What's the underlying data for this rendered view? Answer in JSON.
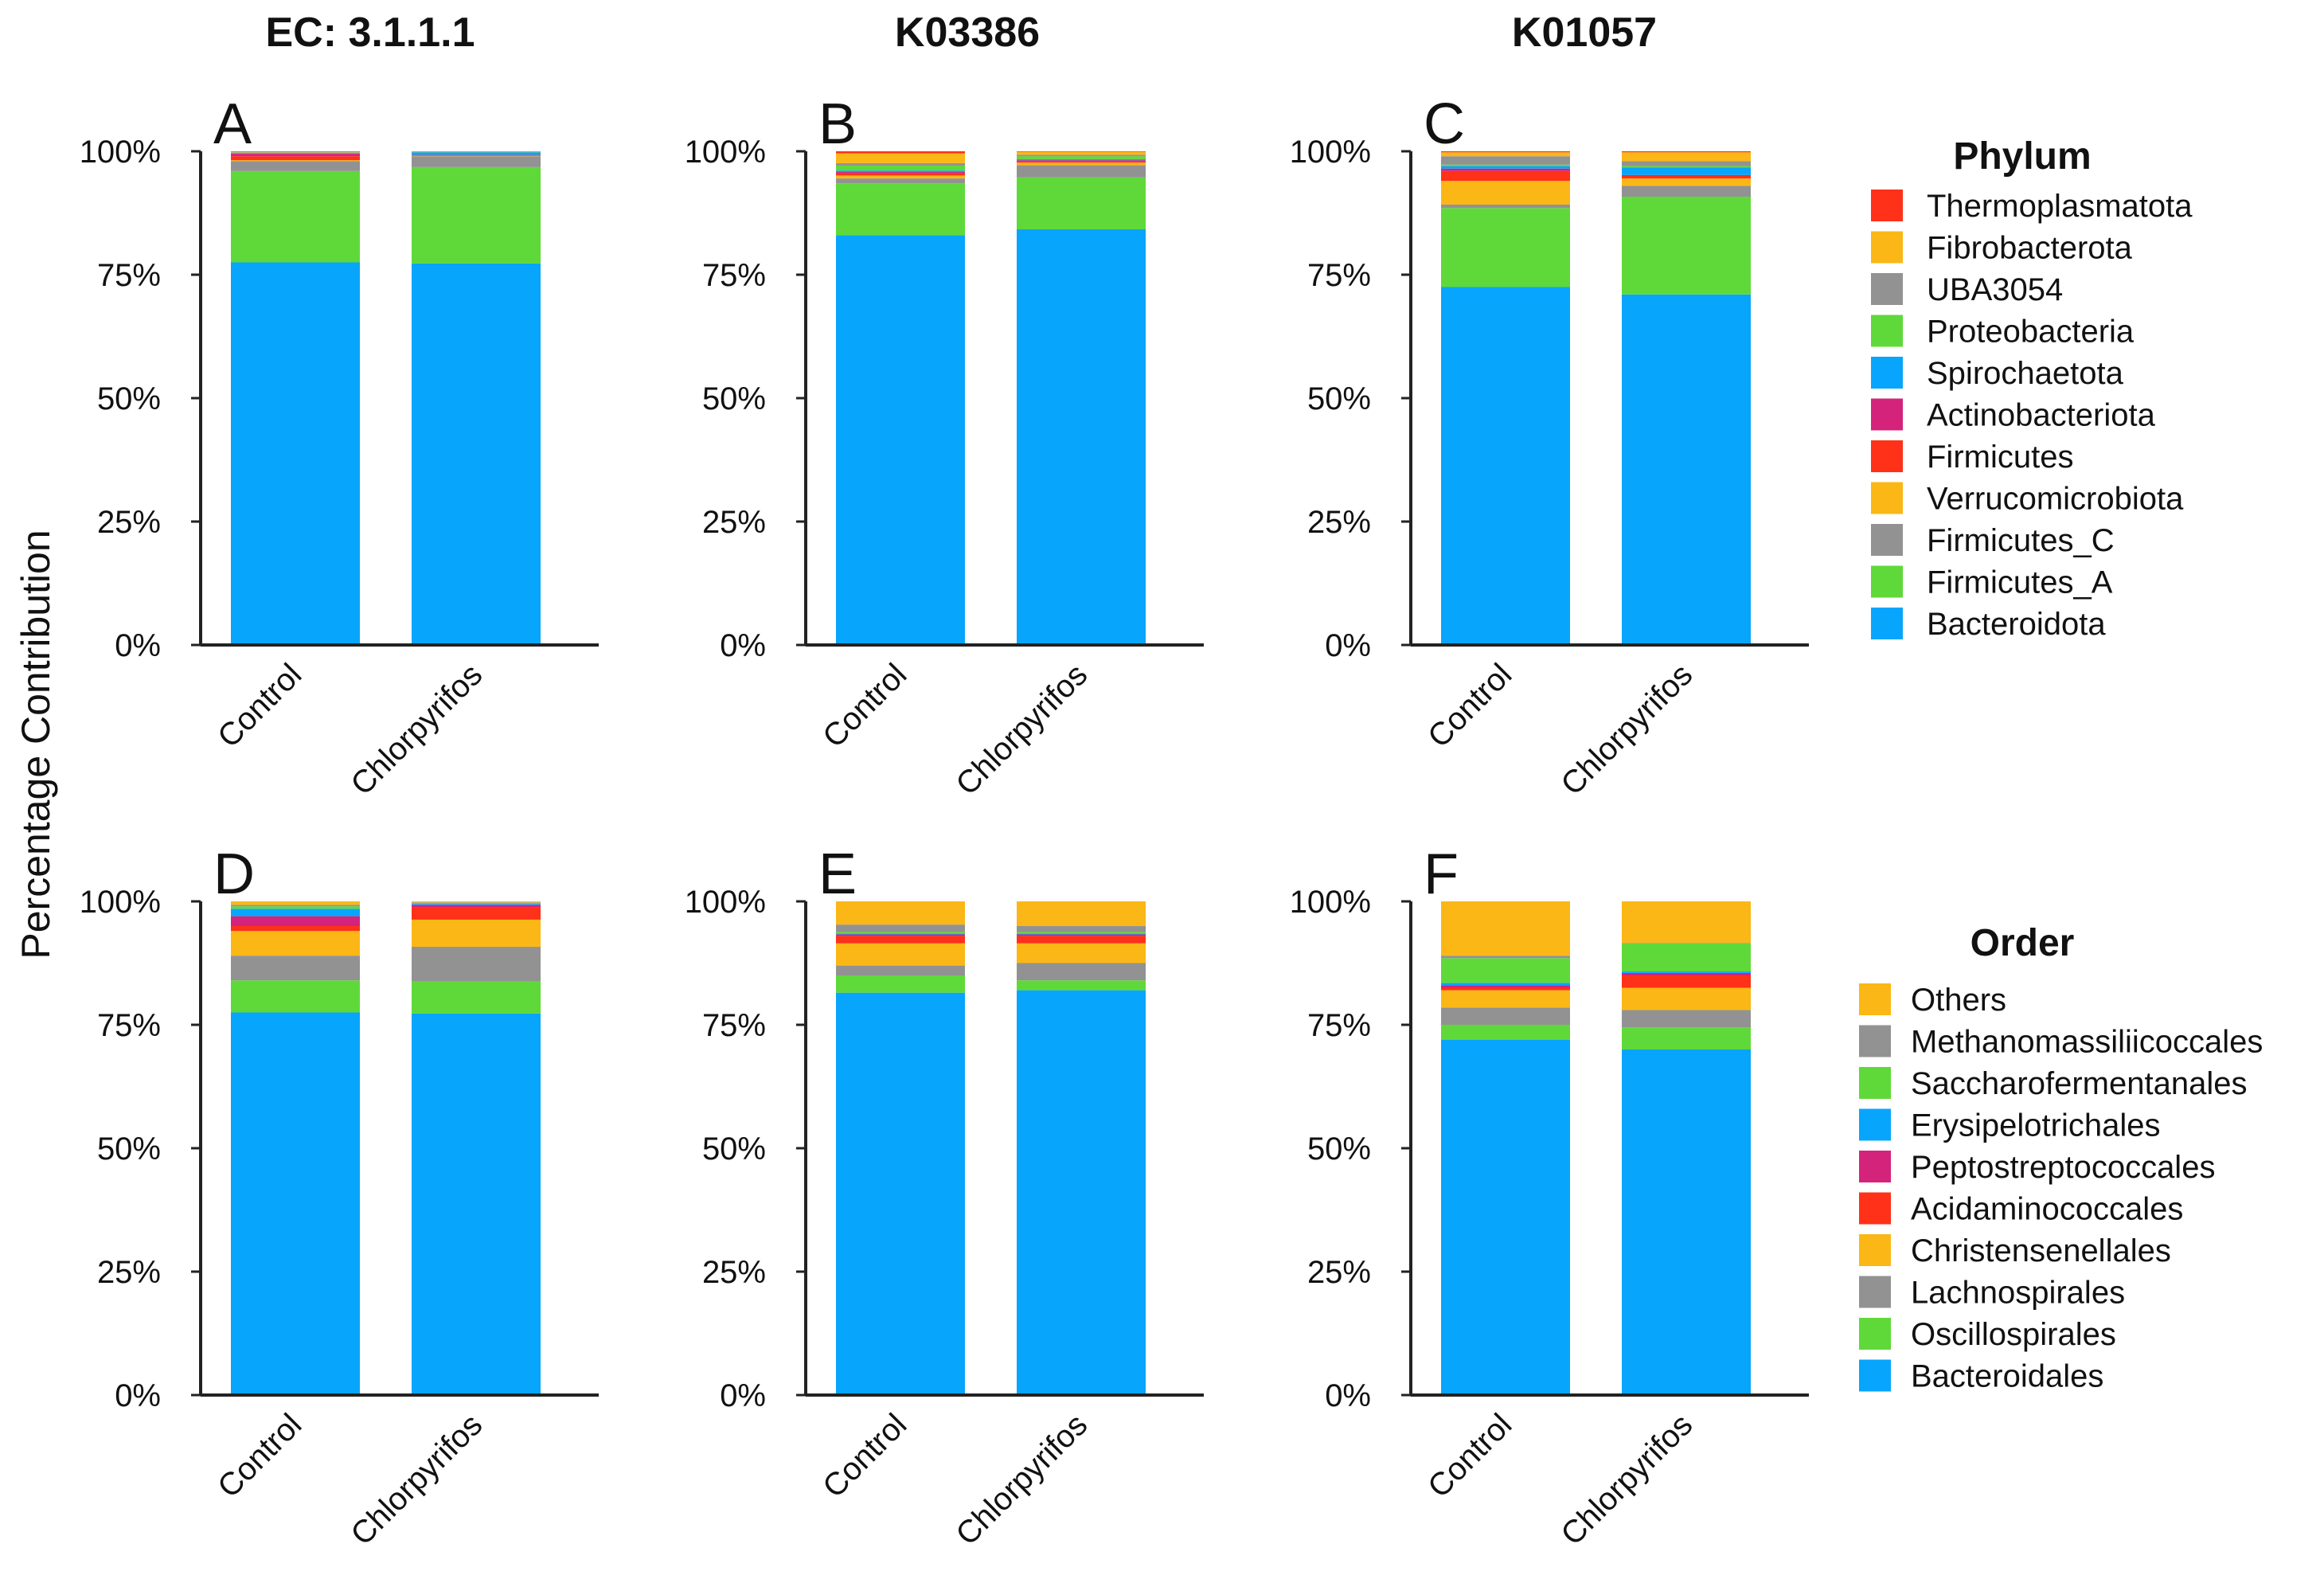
{
  "ylabel": "Percentage Contribution",
  "column_titles": [
    "EC: 3.1.1.1",
    "K03386",
    "K01057"
  ],
  "legends": [
    {
      "title": "Phylum",
      "entries": [
        {
          "label": "Thermoplasmatota",
          "color": "#ff3118"
        },
        {
          "label": "Fibrobacterota",
          "color": "#fbb716"
        },
        {
          "label": "UBA3054",
          "color": "#929292"
        },
        {
          "label": "Proteobacteria",
          "color": "#5fd93a"
        },
        {
          "label": "Spirochaetota",
          "color": "#08a5fd"
        },
        {
          "label": "Actinobacteriota",
          "color": "#d4237b"
        },
        {
          "label": "Firmicutes",
          "color": "#ff3118"
        },
        {
          "label": "Verrucomicrobiota",
          "color": "#fbb716"
        },
        {
          "label": "Firmicutes_C",
          "color": "#929292"
        },
        {
          "label": "Firmicutes_A",
          "color": "#5fd93a"
        },
        {
          "label": "Bacteroidota",
          "color": "#08a5fd"
        }
      ]
    },
    {
      "title": "Order",
      "entries": [
        {
          "label": "Others",
          "color": "#fbb716"
        },
        {
          "label": "Methanomassiliicoccales",
          "color": "#929292"
        },
        {
          "label": "Saccharofermentanales",
          "color": "#5fd93a"
        },
        {
          "label": "Erysipelotrichales",
          "color": "#08a5fd"
        },
        {
          "label": "Peptostreptococcales",
          "color": "#d4237b"
        },
        {
          "label": "Acidaminococcales",
          "color": "#ff3118"
        },
        {
          "label": "Christensenellales",
          "color": "#fbb716"
        },
        {
          "label": "Lachnospirales",
          "color": "#929292"
        },
        {
          "label": "Oscillospirales",
          "color": "#5fd93a"
        },
        {
          "label": "Bacteroidales",
          "color": "#08a5fd"
        }
      ]
    }
  ],
  "chart_data": [
    {
      "panel": "A",
      "type": "bar",
      "stacked": true,
      "legend": "Phylum",
      "categories": [
        "Control",
        "Chlorpyrifos"
      ],
      "ylim": [
        0,
        100
      ],
      "yticks": [
        "0%",
        "25%",
        "50%",
        "75%",
        "100%"
      ],
      "series": [
        {
          "name": "Bacteroidota",
          "values": [
            77.5,
            77.3
          ]
        },
        {
          "name": "Firmicutes_A",
          "values": [
            18.5,
            19.5
          ]
        },
        {
          "name": "Firmicutes_C",
          "values": [
            2.0,
            2.2
          ]
        },
        {
          "name": "Verrucomicrobiota",
          "values": [
            0.2,
            0.1
          ]
        },
        {
          "name": "Firmicutes",
          "values": [
            0.8,
            0.1
          ]
        },
        {
          "name": "Actinobacteriota",
          "values": [
            0.5,
            0.1
          ]
        },
        {
          "name": "Spirochaetota",
          "values": [
            0.1,
            0.5
          ]
        },
        {
          "name": "Proteobacteria",
          "values": [
            0.1,
            0.1
          ]
        },
        {
          "name": "UBA3054",
          "values": [
            0.1,
            0.1
          ]
        },
        {
          "name": "Fibrobacterota",
          "values": [
            0.1,
            0.0
          ]
        },
        {
          "name": "Thermoplasmatota",
          "values": [
            0.1,
            0.0
          ]
        }
      ]
    },
    {
      "panel": "B",
      "type": "bar",
      "stacked": true,
      "legend": "Phylum",
      "categories": [
        "Control",
        "Chlorpyrifos"
      ],
      "ylim": [
        0,
        100
      ],
      "yticks": [
        "0%",
        "25%",
        "50%",
        "75%",
        "100%"
      ],
      "series": [
        {
          "name": "Bacteroidota",
          "values": [
            83.0,
            84.2
          ]
        },
        {
          "name": "Firmicutes_A",
          "values": [
            10.5,
            10.5
          ]
        },
        {
          "name": "Firmicutes_C",
          "values": [
            1.0,
            2.5
          ]
        },
        {
          "name": "Verrucomicrobiota",
          "values": [
            0.6,
            0.5
          ]
        },
        {
          "name": "Firmicutes",
          "values": [
            0.4,
            0.3
          ]
        },
        {
          "name": "Actinobacteriota",
          "values": [
            0.3,
            0.2
          ]
        },
        {
          "name": "Spirochaetota",
          "values": [
            0.3,
            0.2
          ]
        },
        {
          "name": "Proteobacteria",
          "values": [
            1.0,
            0.6
          ]
        },
        {
          "name": "UBA3054",
          "values": [
            0.5,
            0.3
          ]
        },
        {
          "name": "Fibrobacterota",
          "values": [
            2.0,
            0.6
          ]
        },
        {
          "name": "Thermoplasmatota",
          "values": [
            0.4,
            0.1
          ]
        }
      ]
    },
    {
      "panel": "C",
      "type": "bar",
      "stacked": true,
      "legend": "Phylum",
      "categories": [
        "Control",
        "Chlorpyrifos"
      ],
      "ylim": [
        0,
        100
      ],
      "yticks": [
        "0%",
        "25%",
        "50%",
        "75%",
        "100%"
      ],
      "series": [
        {
          "name": "Bacteroidota",
          "values": [
            72.5,
            71.0
          ]
        },
        {
          "name": "Firmicutes_A",
          "values": [
            16.0,
            19.8
          ]
        },
        {
          "name": "Firmicutes_C",
          "values": [
            0.7,
            2.2
          ]
        },
        {
          "name": "Verrucomicrobiota",
          "values": [
            4.8,
            1.5
          ]
        },
        {
          "name": "Firmicutes",
          "values": [
            2.0,
            0.5
          ]
        },
        {
          "name": "Actinobacteriota",
          "values": [
            0.5,
            0.2
          ]
        },
        {
          "name": "Spirochaetota",
          "values": [
            0.5,
            1.5
          ]
        },
        {
          "name": "Proteobacteria",
          "values": [
            0.3,
            0.3
          ]
        },
        {
          "name": "UBA3054",
          "values": [
            1.7,
            1.0
          ]
        },
        {
          "name": "Fibrobacterota",
          "values": [
            0.8,
            1.8
          ]
        },
        {
          "name": "Thermoplasmatota",
          "values": [
            0.2,
            0.2
          ]
        }
      ]
    },
    {
      "panel": "D",
      "type": "bar",
      "stacked": true,
      "legend": "Order",
      "categories": [
        "Control",
        "Chlorpyrifos"
      ],
      "ylim": [
        0,
        100
      ],
      "yticks": [
        "0%",
        "25%",
        "50%",
        "75%",
        "100%"
      ],
      "series": [
        {
          "name": "Bacteroidales",
          "values": [
            77.5,
            77.3
          ]
        },
        {
          "name": "Oscillospirales",
          "values": [
            6.5,
            6.5
          ]
        },
        {
          "name": "Lachnospirales",
          "values": [
            5.0,
            7.0
          ]
        },
        {
          "name": "Christensenellales",
          "values": [
            5.0,
            5.5
          ]
        },
        {
          "name": "Acidaminococcales",
          "values": [
            1.0,
            2.5
          ]
        },
        {
          "name": "Peptostreptococcales",
          "values": [
            2.0,
            0.5
          ]
        },
        {
          "name": "Erysipelotrichales",
          "values": [
            1.5,
            0.2
          ]
        },
        {
          "name": "Saccharofermentanales",
          "values": [
            0.5,
            0.2
          ]
        },
        {
          "name": "Methanomassiliicoccales",
          "values": [
            0.3,
            0.1
          ]
        },
        {
          "name": "Others",
          "values": [
            0.7,
            0.2
          ]
        }
      ]
    },
    {
      "panel": "E",
      "type": "bar",
      "stacked": true,
      "legend": "Order",
      "categories": [
        "Control",
        "Chlorpyrifos"
      ],
      "ylim": [
        0,
        100
      ],
      "yticks": [
        "0%",
        "25%",
        "50%",
        "75%",
        "100%"
      ],
      "series": [
        {
          "name": "Bacteroidales",
          "values": [
            81.5,
            82.0
          ]
        },
        {
          "name": "Oscillospirales",
          "values": [
            3.5,
            2.0
          ]
        },
        {
          "name": "Lachnospirales",
          "values": [
            2.0,
            3.5
          ]
        },
        {
          "name": "Christensenellales",
          "values": [
            4.5,
            4.0
          ]
        },
        {
          "name": "Acidaminococcales",
          "values": [
            1.5,
            1.5
          ]
        },
        {
          "name": "Peptostreptococcales",
          "values": [
            0.3,
            0.3
          ]
        },
        {
          "name": "Erysipelotrichales",
          "values": [
            0.2,
            0.2
          ]
        },
        {
          "name": "Saccharofermentanales",
          "values": [
            0.3,
            0.3
          ]
        },
        {
          "name": "Methanomassiliicoccales",
          "values": [
            1.5,
            1.2
          ]
        },
        {
          "name": "Others",
          "values": [
            4.7,
            5.0
          ]
        }
      ]
    },
    {
      "panel": "F",
      "type": "bar",
      "stacked": true,
      "legend": "Order",
      "categories": [
        "Control",
        "Chlorpyrifos"
      ],
      "ylim": [
        0,
        100
      ],
      "yticks": [
        "0%",
        "25%",
        "50%",
        "75%",
        "100%"
      ],
      "series": [
        {
          "name": "Bacteroidales",
          "values": [
            72.0,
            70.0
          ]
        },
        {
          "name": "Oscillospirales",
          "values": [
            3.0,
            4.5
          ]
        },
        {
          "name": "Lachnospirales",
          "values": [
            3.5,
            3.5
          ]
        },
        {
          "name": "Christensenellales",
          "values": [
            3.5,
            4.5
          ]
        },
        {
          "name": "Acidaminococcales",
          "values": [
            0.5,
            2.5
          ]
        },
        {
          "name": "Peptostreptococcales",
          "values": [
            0.5,
            0.5
          ]
        },
        {
          "name": "Erysipelotrichales",
          "values": [
            0.5,
            0.3
          ]
        },
        {
          "name": "Saccharofermentanales",
          "values": [
            5.0,
            5.7
          ]
        },
        {
          "name": "Methanomassiliicoccales",
          "values": [
            0.5,
            0.1
          ]
        },
        {
          "name": "Others",
          "values": [
            11.0,
            8.4
          ]
        }
      ]
    }
  ]
}
